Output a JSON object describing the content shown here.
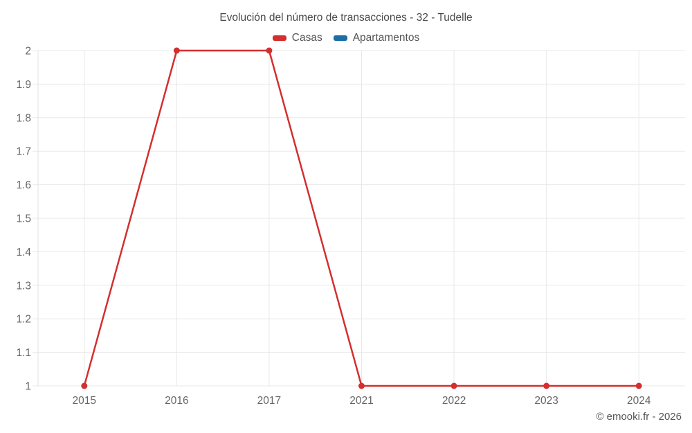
{
  "header": {
    "title": "Evolución del número de transacciones - 32 - Tudelle"
  },
  "legend": {
    "items": [
      {
        "id": "casas",
        "label": "Casas",
        "color": "#d32f2f"
      },
      {
        "id": "apartamentos",
        "label": "Apartamentos",
        "color": "#1c6ea4"
      }
    ]
  },
  "footer": {
    "copyright": "© emooki.fr - 2026"
  },
  "chart_data": {
    "type": "line",
    "title": "Evolución del número de transacciones - 32 - Tudelle",
    "categories": [
      "2015",
      "2016",
      "2017",
      "2021",
      "2022",
      "2023",
      "2024"
    ],
    "series": [
      {
        "name": "Casas",
        "color": "#d32f2f",
        "values": [
          1,
          2,
          2,
          1,
          1,
          1,
          1
        ]
      },
      {
        "name": "Apartamentos",
        "color": "#1c6ea4",
        "values": []
      }
    ],
    "ylim": [
      1,
      2
    ],
    "yticks": [
      "1",
      "1.1",
      "1.2",
      "1.3",
      "1.4",
      "1.5",
      "1.6",
      "1.7",
      "1.8",
      "1.9",
      "2"
    ],
    "xlabel": "",
    "ylabel": "",
    "grid": true,
    "legend_position": "top",
    "marker_radius": 4.5,
    "line_width": 2.5,
    "grid_color": "#e8e8e8",
    "axis_line_color": "#e0e0e0",
    "tick_label_color": "#666666"
  }
}
